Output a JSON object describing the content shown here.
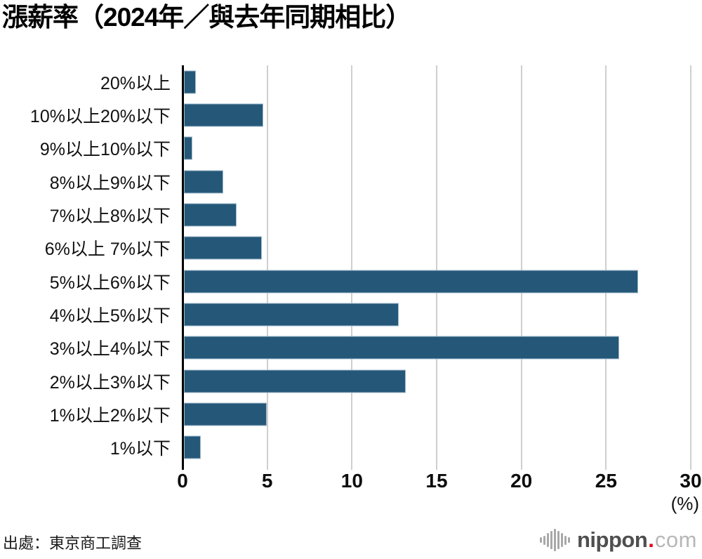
{
  "page": {
    "title": "漲薪率（2024年／與去年同期相比）"
  },
  "chart_data": {
    "type": "bar",
    "orientation": "horizontal",
    "title": "漲薪率（2024年／與去年同期相比）",
    "categories": [
      "20%以上",
      "10%以上20%以下",
      "9%以上10%以下",
      "8%以上9%以下",
      "7%以上8%以下",
      "6%以上 7%以下",
      "5%以上6%以下",
      "4%以上5%以下",
      "3%以上4%以下",
      "2%以上3%以下",
      "1%以上2%以下",
      "1%以下"
    ],
    "values": [
      0.7,
      4.7,
      0.5,
      2.3,
      3.1,
      4.6,
      26.8,
      12.7,
      25.7,
      13.1,
      4.9,
      1.0
    ],
    "xlim": [
      0,
      30
    ],
    "xticks": [
      0,
      5,
      10,
      15,
      20,
      25,
      30
    ],
    "x_unit_label": "(%)",
    "grid": true,
    "legend_position": "none",
    "colors": {
      "bar": "#255878",
      "bar_border": "#9fb9cc",
      "grid": "#cfcfcf",
      "axis": "#000000"
    }
  },
  "footer": {
    "source": "出處：東京商工調查",
    "logo": {
      "icon": "waveform-icon",
      "brand": "nippon",
      "dot": ".",
      "tld": "com",
      "colors": {
        "brand": "#4f4f4f",
        "dot": "#e60012",
        "tld": "#b7b7b7",
        "icon": "#a8a8a8"
      }
    }
  }
}
